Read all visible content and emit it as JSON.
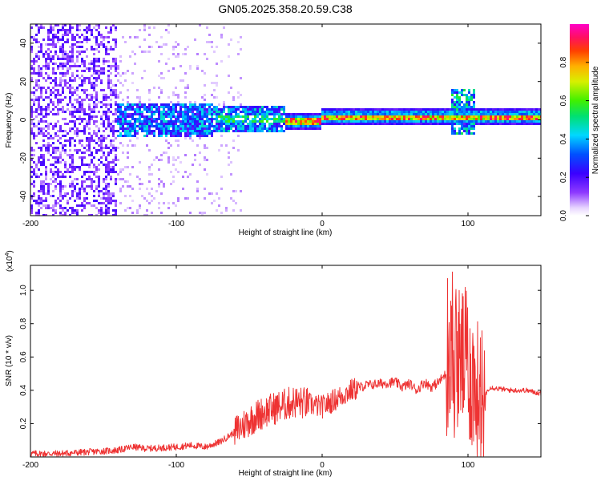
{
  "title": "GN05.2025.358.20.59.C38",
  "chart_data": [
    {
      "type": "heatmap",
      "name": "spectrogram",
      "xlabel": "Height of straight line (km)",
      "ylabel": "Frequency (Hz)",
      "xlim": [
        -200,
        150
      ],
      "ylim": [
        -50,
        50
      ],
      "xticks": [
        -200,
        -100,
        0,
        100
      ],
      "yticks": [
        -40,
        -20,
        0,
        20,
        40
      ],
      "colorbar": {
        "label": "Normalized spectral amplitude",
        "range": [
          0,
          1
        ],
        "ticks": [
          "0.0",
          "0.2",
          "0.4",
          "0.6",
          "0.8"
        ],
        "tick_values": [
          0.0,
          0.2,
          0.4,
          0.6,
          0.8
        ]
      },
      "features": [
        {
          "desc": "broadband scatter",
          "x_range": [
            -200,
            -140
          ],
          "freq_range": [
            -50,
            50
          ],
          "amplitude": 0.15
        },
        {
          "desc": "noisy band",
          "x_range": [
            -140,
            -25
          ],
          "freq_range": [
            -10,
            8
          ],
          "amplitude": 0.35
        },
        {
          "desc": "main line",
          "x_range": [
            -25,
            150
          ],
          "freq_center": 1,
          "amplitude": 0.75
        },
        {
          "desc": "spike near 95 km",
          "x_range": [
            88,
            105
          ],
          "freq_range": [
            -8,
            16
          ],
          "amplitude": 0.5
        }
      ]
    },
    {
      "type": "line",
      "name": "snr",
      "xlabel": "Height of straight line (km)",
      "ylabel": "SNR (10 * v/v)",
      "y_multiplier": "(x10",
      "y_multiplier_exp": "4",
      "y_multiplier_close": ")",
      "xlim": [
        -200,
        150
      ],
      "ylim": [
        0,
        1.15
      ],
      "xticks": [
        -200,
        -100,
        0,
        100
      ],
      "yticks": [
        0.2,
        0.4,
        0.6,
        0.8,
        1.0
      ],
      "color": "#ee3333",
      "series": [
        {
          "name": "SNR",
          "x": [
            -200,
            -180,
            -160,
            -140,
            -130,
            -120,
            -100,
            -90,
            -80,
            -70,
            -60,
            -50,
            -40,
            -30,
            -20,
            -10,
            0,
            10,
            20,
            30,
            40,
            50,
            55,
            60,
            65,
            70,
            75,
            80,
            85,
            90,
            95,
            100,
            105,
            110,
            115,
            120,
            130,
            140,
            150
          ],
          "values": [
            0.02,
            0.02,
            0.03,
            0.04,
            0.06,
            0.05,
            0.06,
            0.07,
            0.06,
            0.09,
            0.15,
            0.22,
            0.27,
            0.3,
            0.33,
            0.32,
            0.3,
            0.35,
            0.4,
            0.43,
            0.44,
            0.45,
            0.42,
            0.44,
            0.4,
            0.45,
            0.42,
            0.45,
            0.5,
            0.55,
            0.6,
            0.55,
            0.4,
            0.35,
            0.42,
            0.41,
            0.4,
            0.4,
            0.38
          ]
        }
      ]
    }
  ],
  "colors": {
    "line": "#ee3333",
    "background": "#ffffff",
    "axis": "#000000"
  }
}
